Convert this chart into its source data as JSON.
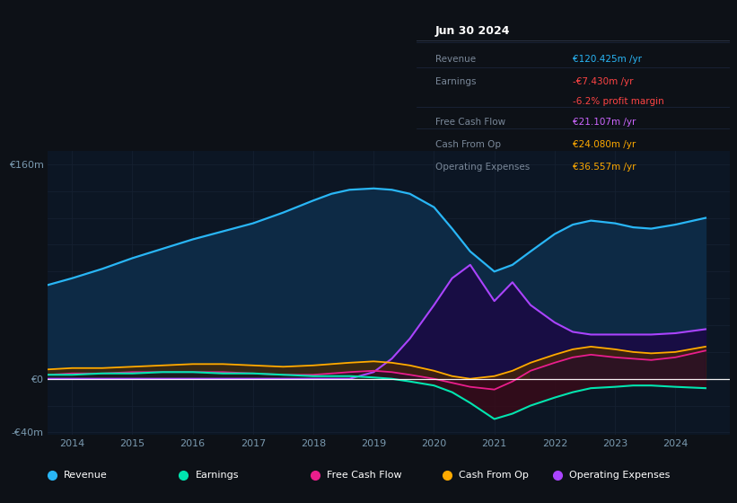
{
  "bg_color": "#0d1117",
  "plot_bg_color": "#0c1624",
  "title": "Jun 30 2024",
  "info_box": {
    "rows": [
      {
        "label": "Revenue",
        "value": "€120.425m /yr",
        "value_color": "#29b6f6"
      },
      {
        "label": "Earnings",
        "value": "-€7.430m /yr",
        "value_color": "#ff4444"
      },
      {
        "label": "",
        "value": "-6.2% profit margin",
        "value_color": "#ff4444"
      },
      {
        "label": "Free Cash Flow",
        "value": "€21.107m /yr",
        "value_color": "#cc66ff"
      },
      {
        "label": "Cash From Op",
        "value": "€24.080m /yr",
        "value_color": "#ffaa00"
      },
      {
        "label": "Operating Expenses",
        "value": "€36.557m /yr",
        "value_color": "#ffaa00"
      }
    ]
  },
  "ylim": [
    -42,
    170
  ],
  "xlim": [
    2013.6,
    2024.9
  ],
  "xticks": [
    2014,
    2015,
    2016,
    2017,
    2018,
    2019,
    2020,
    2021,
    2022,
    2023,
    2024
  ],
  "years": [
    2013.6,
    2014.0,
    2014.5,
    2015.0,
    2015.5,
    2016.0,
    2016.5,
    2017.0,
    2017.5,
    2018.0,
    2018.3,
    2018.6,
    2019.0,
    2019.3,
    2019.6,
    2020.0,
    2020.3,
    2020.6,
    2021.0,
    2021.3,
    2021.6,
    2022.0,
    2022.3,
    2022.6,
    2023.0,
    2023.3,
    2023.6,
    2024.0,
    2024.5
  ],
  "revenue": [
    70,
    75,
    82,
    90,
    97,
    104,
    110,
    116,
    124,
    133,
    138,
    141,
    142,
    141,
    138,
    128,
    112,
    95,
    80,
    85,
    95,
    108,
    115,
    118,
    116,
    113,
    112,
    115,
    120
  ],
  "earnings": [
    3,
    3,
    4,
    4,
    5,
    5,
    4,
    4,
    3,
    2,
    2,
    2,
    1,
    0,
    -2,
    -5,
    -10,
    -18,
    -30,
    -26,
    -20,
    -14,
    -10,
    -7,
    -6,
    -5,
    -5,
    -6,
    -7
  ],
  "free_cash_flow": [
    3,
    4,
    4,
    5,
    5,
    5,
    5,
    4,
    3,
    3,
    4,
    5,
    6,
    5,
    3,
    0,
    -3,
    -6,
    -8,
    -2,
    6,
    12,
    16,
    18,
    16,
    15,
    14,
    16,
    21
  ],
  "cash_from_op": [
    7,
    8,
    8,
    9,
    10,
    11,
    11,
    10,
    9,
    10,
    11,
    12,
    13,
    12,
    10,
    6,
    2,
    0,
    2,
    6,
    12,
    18,
    22,
    24,
    22,
    20,
    19,
    20,
    24
  ],
  "op_expenses": [
    0,
    0,
    0,
    0,
    0,
    0,
    0,
    0,
    0,
    0,
    0,
    0,
    5,
    15,
    30,
    55,
    75,
    85,
    58,
    72,
    55,
    42,
    35,
    33,
    33,
    33,
    33,
    34,
    37
  ],
  "revenue_color": "#29b6f6",
  "revenue_fill": "#0d2a45",
  "earnings_color": "#00e5b0",
  "fcf_color": "#e91e8c",
  "cashop_color": "#ffaa00",
  "opex_color": "#aa44ff",
  "opex_fill": "#2a1060",
  "zero_line_color": "#ffffff",
  "grid_color": "#152030",
  "legend_items": [
    {
      "label": "Revenue",
      "color": "#29b6f6"
    },
    {
      "label": "Earnings",
      "color": "#00e5b0"
    },
    {
      "label": "Free Cash Flow",
      "color": "#e91e8c"
    },
    {
      "label": "Cash From Op",
      "color": "#ffaa00"
    },
    {
      "label": "Operating Expenses",
      "color": "#aa44ff"
    }
  ]
}
